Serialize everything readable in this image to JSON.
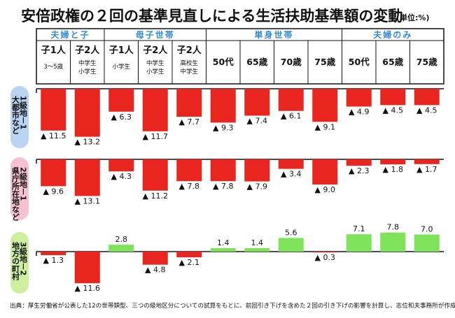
{
  "chart_data": {
    "type": "bar",
    "title": "安倍政権の２回の基準見直しによる生活扶助基準額の変動",
    "unit": "(単位:%)",
    "negative_marker": "▲",
    "groups": [
      {
        "label": "夫婦と子",
        "span": 2
      },
      {
        "label": "母子世帯",
        "span": 3
      },
      {
        "label": "単身世帯",
        "span": 4
      },
      {
        "label": "夫婦のみ",
        "span": 3
      }
    ],
    "categories": [
      {
        "label": "子1人",
        "sub": [
          "3～5歳"
        ]
      },
      {
        "label": "子2人",
        "sub": [
          "中学生",
          "小学生"
        ]
      },
      {
        "label": "子1人",
        "sub": [
          "小学生"
        ]
      },
      {
        "label": "子2人",
        "sub": [
          "中学生",
          "小学生"
        ]
      },
      {
        "label": "子2人",
        "sub": [
          "高校生",
          "中学生"
        ]
      },
      {
        "label": "50代",
        "sub": []
      },
      {
        "label": "65歳",
        "sub": []
      },
      {
        "label": "70歳",
        "sub": []
      },
      {
        "label": "75歳",
        "sub": []
      },
      {
        "label": "50代",
        "sub": []
      },
      {
        "label": "65歳",
        "sub": []
      },
      {
        "label": "75歳",
        "sub": []
      }
    ],
    "series": [
      {
        "name": "1級地－1 大都市など",
        "values": [
          -11.5,
          -13.2,
          -6.3,
          -11.7,
          -7.7,
          -9.3,
          -7.4,
          -6.1,
          -9.1,
          -4.9,
          -4.5,
          -4.5
        ]
      },
      {
        "name": "2級地－1 県庁所在地など",
        "values": [
          -9.6,
          -13.1,
          -4.3,
          -11.2,
          -7.8,
          -7.8,
          -7.9,
          -3.4,
          -9.0,
          -2.3,
          -1.8,
          -1.7
        ]
      },
      {
        "name": "3級地－2 地方の町村",
        "values": [
          -1.3,
          -11.6,
          2.8,
          -4.8,
          -2.1,
          1.4,
          1.4,
          5.6,
          -0.3,
          7.1,
          7.8,
          7.0
        ]
      }
    ],
    "row_labels": [
      {
        "line1": "1級地－1",
        "line2": "大都市など",
        "color": "#b9d3f3"
      },
      {
        "line1": "2級地－1",
        "line2": "県庁所在地など",
        "color": "#f6c1d1"
      },
      {
        "line1": "3級地－2",
        "line2": "地方の町村",
        "color": "#cdf0a0"
      }
    ],
    "colors": {
      "negative": "#e8261f",
      "positive": "#7ee35a",
      "group_header": "#2d8bd6"
    }
  },
  "footer": "出典：厚生労働省が公表した12の世帯類型、三つの級地区分についての試算をもとに、前回引き下げを含めた２回の引き下げの影響を計算し、志位和夫事務所が作成"
}
